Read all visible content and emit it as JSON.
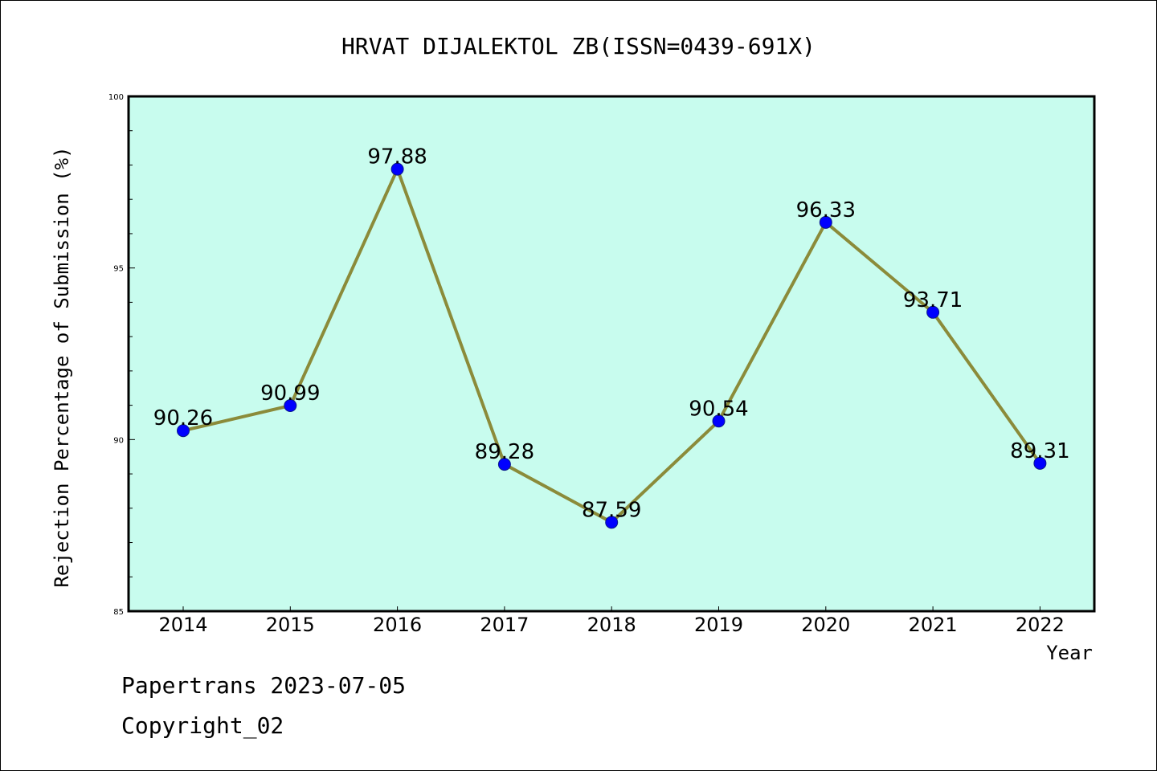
{
  "chart_data": {
    "type": "line",
    "title": "HRVAT DIJALEKTOL ZB(ISSN=0439-691X)",
    "xlabel": "Year",
    "ylabel": "Rejection Percentage of Submission (%)",
    "categories": [
      "2014",
      "2015",
      "2016",
      "2017",
      "2018",
      "2019",
      "2020",
      "2021",
      "2022"
    ],
    "series": [
      {
        "values": [
          90.26,
          90.99,
          97.88,
          89.28,
          87.59,
          90.54,
          96.33,
          93.71,
          89.31
        ],
        "labels": [
          "90.26",
          "90.99",
          "97.88",
          "89.28",
          "87.59",
          "90.54",
          "96.33",
          "93.71",
          "89.31"
        ]
      }
    ],
    "ylim": [
      85,
      100
    ],
    "yticks": [
      85,
      90,
      95,
      100
    ],
    "yticks_minor_step": 1,
    "grid": false,
    "colors": {
      "plot_background": "#c8fcee",
      "line": "#8b8b3a",
      "marker": "#0000ff",
      "marker_edge": "#0a1a8a"
    }
  },
  "footer": {
    "line1": "Papertrans 2023-07-05",
    "line2": "Copyright_02"
  }
}
